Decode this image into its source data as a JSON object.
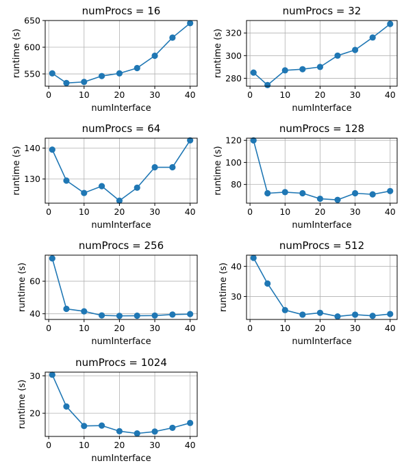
{
  "figure": {
    "colors": {
      "series": "#1f77b4",
      "grid": "#b0b0b0",
      "axes": "#000000"
    }
  },
  "chart_data": [
    {
      "type": "line",
      "title": "numProcs = 16",
      "xlabel": "numInterface",
      "ylabel": "runtime (s)",
      "x": [
        1,
        5,
        10,
        15,
        20,
        25,
        30,
        35,
        40
      ],
      "values": [
        551,
        533,
        535,
        546,
        551,
        561,
        584,
        618,
        645
      ],
      "xlim": [
        -1.0,
        42.0
      ],
      "ylim": [
        527,
        650
      ],
      "xticks": [
        0,
        10,
        20,
        30,
        40
      ],
      "yticks": [
        550,
        600,
        650
      ],
      "grid": true
    },
    {
      "type": "line",
      "title": "numProcs = 32",
      "xlabel": "numInterface",
      "ylabel": "runtime (s)",
      "x": [
        1,
        5,
        10,
        15,
        20,
        25,
        30,
        35,
        40
      ],
      "values": [
        285,
        274,
        287,
        288,
        290,
        300,
        305,
        316,
        328
      ],
      "xlim": [
        -1.0,
        42.0
      ],
      "ylim": [
        273,
        331
      ],
      "xticks": [
        0,
        10,
        20,
        30,
        40
      ],
      "yticks": [
        280,
        300,
        320
      ],
      "grid": true
    },
    {
      "type": "line",
      "title": "numProcs = 64",
      "xlabel": "numInterface",
      "ylabel": "runtime (s)",
      "x": [
        1,
        5,
        10,
        15,
        20,
        25,
        30,
        35,
        40
      ],
      "values": [
        139.5,
        129.5,
        125.5,
        127.7,
        123.0,
        127.2,
        133.8,
        133.8,
        142.5
      ],
      "xlim": [
        -1.0,
        42.0
      ],
      "ylim": [
        122.2,
        143.2
      ],
      "xticks": [
        0,
        10,
        20,
        30,
        40
      ],
      "yticks": [
        130,
        140
      ],
      "grid": true
    },
    {
      "type": "line",
      "title": "numProcs = 128",
      "xlabel": "numInterface",
      "ylabel": "runtime (s)",
      "x": [
        1,
        5,
        10,
        15,
        20,
        25,
        30,
        35,
        40
      ],
      "values": [
        120,
        72,
        73,
        72,
        67,
        66,
        72,
        71,
        74
      ],
      "xlim": [
        -1.0,
        42.0
      ],
      "ylim": [
        63,
        122
      ],
      "xticks": [
        0,
        10,
        20,
        30,
        40
      ],
      "yticks": [
        80,
        100,
        120
      ],
      "grid": true
    },
    {
      "type": "line",
      "title": "numProcs = 256",
      "xlabel": "numInterface",
      "ylabel": "runtime (s)",
      "x": [
        1,
        5,
        10,
        15,
        20,
        25,
        30,
        35,
        40
      ],
      "values": [
        74,
        43,
        41.5,
        39,
        38.7,
        38.8,
        38.9,
        39.5,
        39.8
      ],
      "xlim": [
        -1.0,
        42.0
      ],
      "ylim": [
        36.5,
        76
      ],
      "xticks": [
        0,
        10,
        20,
        30,
        40
      ],
      "yticks": [
        40,
        60
      ],
      "grid": true
    },
    {
      "type": "line",
      "title": "numProcs = 512",
      "xlabel": "numInterface",
      "ylabel": "runtime (s)",
      "x": [
        1,
        5,
        10,
        15,
        20,
        25,
        30,
        35,
        40
      ],
      "values": [
        42.8,
        34.3,
        25.5,
        24.0,
        24.6,
        23.4,
        24.0,
        23.6,
        24.2
      ],
      "xlim": [
        -1.0,
        42.0
      ],
      "ylim": [
        22.4,
        43.7
      ],
      "xticks": [
        0,
        10,
        20,
        30,
        40
      ],
      "yticks": [
        30,
        40
      ],
      "grid": true
    },
    {
      "type": "line",
      "title": "numProcs = 1024",
      "xlabel": "numInterface",
      "ylabel": "runtime (s)",
      "x": [
        1,
        5,
        10,
        15,
        20,
        25,
        30,
        35,
        40
      ],
      "values": [
        30.3,
        21.8,
        16.6,
        16.7,
        15.2,
        14.6,
        15.1,
        16.1,
        17.4
      ],
      "xlim": [
        -1.0,
        42.0
      ],
      "ylim": [
        13.8,
        31.0
      ],
      "xticks": [
        0,
        10,
        20,
        30,
        40
      ],
      "yticks": [
        20,
        30
      ],
      "grid": true
    }
  ]
}
